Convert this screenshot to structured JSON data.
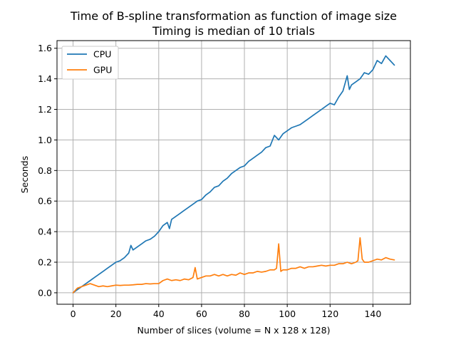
{
  "chart_data": {
    "type": "line",
    "title": "Time of B-spline transformation as function of image size",
    "subtitle": "Timing is median of 10 trials",
    "xlabel": "Number of slices (volume = N x 128 x 128)",
    "ylabel": "Seconds",
    "xlim": [
      -7.5,
      157.5
    ],
    "ylim": [
      -0.075,
      1.65
    ],
    "xticks": [
      0,
      20,
      40,
      60,
      80,
      100,
      120,
      140
    ],
    "yticks": [
      0.0,
      0.2,
      0.4,
      0.6,
      0.8,
      1.0,
      1.2,
      1.4,
      1.6
    ],
    "ytick_labels": [
      "0.0",
      "0.2",
      "0.4",
      "0.6",
      "0.8",
      "1.0",
      "1.2",
      "1.4",
      "1.6"
    ],
    "grid": true,
    "legend_position": "top-left",
    "series": [
      {
        "name": "CPU",
        "color": "#1f77b4",
        "x": [
          0,
          2,
          4,
          6,
          8,
          10,
          12,
          14,
          16,
          18,
          20,
          22,
          24,
          26,
          27,
          28,
          30,
          32,
          34,
          36,
          38,
          40,
          42,
          44,
          45,
          46,
          48,
          50,
          52,
          54,
          56,
          58,
          60,
          62,
          64,
          66,
          68,
          70,
          72,
          74,
          76,
          78,
          80,
          82,
          84,
          86,
          88,
          90,
          92,
          94,
          96,
          98,
          100,
          102,
          104,
          106,
          108,
          110,
          112,
          114,
          116,
          118,
          120,
          122,
          124,
          126,
          128,
          129,
          130,
          132,
          134,
          136,
          138,
          140,
          142,
          144,
          146,
          148,
          150
        ],
        "values": [
          0.0,
          0.02,
          0.04,
          0.06,
          0.08,
          0.1,
          0.12,
          0.14,
          0.16,
          0.18,
          0.2,
          0.21,
          0.23,
          0.26,
          0.31,
          0.28,
          0.3,
          0.32,
          0.34,
          0.35,
          0.37,
          0.4,
          0.44,
          0.46,
          0.42,
          0.48,
          0.5,
          0.52,
          0.54,
          0.56,
          0.58,
          0.6,
          0.61,
          0.64,
          0.66,
          0.69,
          0.7,
          0.73,
          0.75,
          0.78,
          0.8,
          0.82,
          0.83,
          0.86,
          0.88,
          0.9,
          0.92,
          0.95,
          0.96,
          1.03,
          1.0,
          1.04,
          1.06,
          1.08,
          1.09,
          1.1,
          1.12,
          1.14,
          1.16,
          1.18,
          1.2,
          1.22,
          1.24,
          1.23,
          1.28,
          1.32,
          1.42,
          1.33,
          1.36,
          1.38,
          1.4,
          1.44,
          1.43,
          1.46,
          1.52,
          1.5,
          1.55,
          1.52,
          1.49
        ]
      },
      {
        "name": "GPU",
        "color": "#ff7f0e",
        "x": [
          0,
          2,
          4,
          6,
          8,
          10,
          12,
          14,
          16,
          18,
          20,
          22,
          24,
          26,
          28,
          30,
          32,
          34,
          36,
          38,
          40,
          42,
          44,
          46,
          48,
          50,
          52,
          54,
          56,
          57,
          58,
          60,
          62,
          64,
          66,
          68,
          70,
          72,
          74,
          76,
          78,
          80,
          82,
          84,
          86,
          88,
          90,
          92,
          94,
          95,
          96,
          97,
          98,
          100,
          102,
          104,
          106,
          108,
          110,
          112,
          114,
          116,
          118,
          120,
          122,
          124,
          126,
          128,
          130,
          132,
          133,
          134,
          135,
          136,
          138,
          140,
          142,
          144,
          146,
          148,
          150
        ],
        "values": [
          0.0,
          0.03,
          0.04,
          0.05,
          0.06,
          0.05,
          0.04,
          0.045,
          0.04,
          0.045,
          0.05,
          0.048,
          0.05,
          0.05,
          0.052,
          0.055,
          0.055,
          0.06,
          0.058,
          0.06,
          0.06,
          0.08,
          0.09,
          0.08,
          0.085,
          0.08,
          0.09,
          0.085,
          0.1,
          0.165,
          0.09,
          0.1,
          0.11,
          0.11,
          0.12,
          0.11,
          0.12,
          0.11,
          0.12,
          0.115,
          0.13,
          0.12,
          0.13,
          0.13,
          0.14,
          0.135,
          0.14,
          0.15,
          0.15,
          0.16,
          0.32,
          0.14,
          0.15,
          0.15,
          0.16,
          0.16,
          0.17,
          0.16,
          0.17,
          0.17,
          0.175,
          0.18,
          0.175,
          0.18,
          0.18,
          0.19,
          0.19,
          0.2,
          0.19,
          0.2,
          0.21,
          0.36,
          0.22,
          0.2,
          0.2,
          0.21,
          0.22,
          0.215,
          0.23,
          0.22,
          0.215
        ]
      }
    ]
  }
}
